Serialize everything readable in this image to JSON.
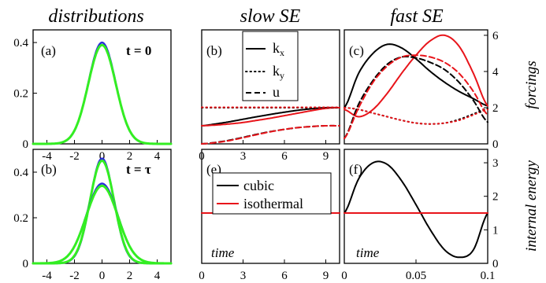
{
  "titles": {
    "distributions": "distributions",
    "slow": "slow SE",
    "fast": "fast SE"
  },
  "side_labels": {
    "forcings": "forcings",
    "energy": "internal energy"
  },
  "time_label": "time",
  "panel_labels": {
    "a": "(a)",
    "b_dist": "(b)",
    "b": "(b)",
    "c": "(c)",
    "e": "(e)",
    "f": "(f)"
  },
  "time_labels": {
    "t0": "t = 0",
    "ttau": "t = τ"
  },
  "legend_top": {
    "kx": "k",
    "kx_sub": "x",
    "ky": "k",
    "ky_sub": "y",
    "u": "u"
  },
  "legend_bottom": {
    "cubic": "cubic",
    "isothermal": "isothermal"
  },
  "colors": {
    "black": "#000000",
    "red": "#e8141a",
    "green": "#33ee22",
    "blue": "#2a2adc"
  },
  "chart_data": [
    {
      "id": "a",
      "type": "line",
      "xlim": [
        -5,
        5
      ],
      "ylim": [
        0,
        0.45
      ],
      "xticks": [
        "-4",
        "-2",
        "0",
        "2",
        "4"
      ],
      "yticks": [
        "0",
        "0.2",
        "0.4"
      ],
      "series": [
        {
          "color": "blue",
          "peak": 0.4,
          "width": 0.99
        },
        {
          "color": "green",
          "peak": 0.39,
          "width": 1.0
        }
      ]
    },
    {
      "id": "b_dist",
      "type": "line",
      "xlim": [
        -5,
        5
      ],
      "ylim": [
        0,
        0.5
      ],
      "xticks": [
        "-4",
        "-2",
        "0",
        "2",
        "4"
      ],
      "yticks": [
        "0",
        "0.2",
        "0.4"
      ],
      "series": [
        {
          "color": "blue",
          "peak": 0.46,
          "width": 0.86
        },
        {
          "color": "green",
          "peak": 0.45,
          "width": 0.88
        },
        {
          "color": "blue",
          "peak": 0.35,
          "width": 1.14
        },
        {
          "color": "green",
          "peak": 0.34,
          "width": 1.15
        }
      ]
    },
    {
      "id": "b",
      "type": "line",
      "xlim": [
        0,
        10
      ],
      "ylim": [
        0,
        6.3
      ],
      "xticks": [
        "0",
        "3",
        "6",
        "9"
      ],
      "x": [
        0,
        1,
        2,
        3,
        4,
        5,
        6,
        7,
        8,
        9,
        10
      ],
      "series": [
        {
          "name": "kx",
          "color": "black",
          "dash": "solid",
          "values": [
            1.0,
            1.1,
            1.22,
            1.36,
            1.5,
            1.63,
            1.75,
            1.86,
            1.94,
            2.0,
            2.0
          ]
        },
        {
          "name": "kx",
          "color": "red",
          "dash": "solid",
          "values": [
            1.0,
            1.04,
            1.1,
            1.18,
            1.3,
            1.42,
            1.56,
            1.7,
            1.84,
            1.96,
            2.0
          ]
        },
        {
          "name": "ky",
          "color": "black",
          "dash": "dot",
          "values": [
            2.0,
            2.0,
            2.0,
            2.0,
            2.0,
            2.0,
            2.0,
            2.0,
            2.0,
            2.0,
            2.0
          ]
        },
        {
          "name": "ky",
          "color": "red",
          "dash": "dot",
          "values": [
            2.02,
            2.02,
            2.02,
            2.02,
            2.02,
            2.02,
            2.02,
            2.02,
            2.02,
            2.02,
            2.02
          ]
        },
        {
          "name": "u",
          "color": "black",
          "dash": "dash",
          "values": [
            0.0,
            0.08,
            0.2,
            0.36,
            0.53,
            0.68,
            0.8,
            0.9,
            0.96,
            1.0,
            1.0
          ]
        },
        {
          "name": "u",
          "color": "red",
          "dash": "dash",
          "values": [
            0.0,
            0.07,
            0.18,
            0.34,
            0.51,
            0.67,
            0.8,
            0.9,
            0.96,
            1.0,
            1.0
          ]
        }
      ]
    },
    {
      "id": "c",
      "type": "line",
      "xlim": [
        0,
        0.1
      ],
      "ylim": [
        0,
        6.3
      ],
      "yticks_right": [
        "0",
        "2",
        "4",
        "6"
      ],
      "x": [
        0,
        0.01,
        0.02,
        0.03,
        0.04,
        0.05,
        0.06,
        0.07,
        0.08,
        0.09,
        0.1
      ],
      "series": [
        {
          "name": "kx",
          "color": "black",
          "dash": "solid",
          "values": [
            2.0,
            3.9,
            5.0,
            5.5,
            5.3,
            4.7,
            4.0,
            3.4,
            2.9,
            2.5,
            2.1
          ]
        },
        {
          "name": "kx",
          "color": "red",
          "dash": "solid",
          "values": [
            1.9,
            1.5,
            1.9,
            2.8,
            3.9,
            4.9,
            5.7,
            6.0,
            5.4,
            3.9,
            2.1
          ]
        },
        {
          "name": "ky",
          "color": "black",
          "dash": "dot",
          "values": [
            2.0,
            1.9,
            1.7,
            1.5,
            1.3,
            1.15,
            1.1,
            1.15,
            1.35,
            1.65,
            1.95
          ]
        },
        {
          "name": "ky",
          "color": "red",
          "dash": "dot",
          "values": [
            2.0,
            1.9,
            1.7,
            1.5,
            1.3,
            1.15,
            1.1,
            1.15,
            1.3,
            1.6,
            1.9
          ]
        },
        {
          "name": "u",
          "color": "black",
          "dash": "dash",
          "values": [
            0.3,
            2.2,
            3.5,
            4.4,
            4.8,
            4.75,
            4.5,
            4.1,
            3.4,
            2.4,
            1.2
          ]
        },
        {
          "name": "u",
          "color": "red",
          "dash": "dash",
          "values": [
            0.3,
            2.0,
            3.4,
            4.3,
            4.8,
            4.9,
            4.8,
            4.5,
            3.9,
            2.9,
            1.6
          ]
        }
      ]
    },
    {
      "id": "e",
      "type": "line",
      "xlim": [
        0,
        10
      ],
      "ylim": [
        0,
        3.4
      ],
      "xticks": [
        "0",
        "3",
        "6",
        "9"
      ],
      "x": [
        0,
        2,
        4,
        6,
        8,
        10
      ],
      "series": [
        {
          "name": "cubic",
          "color": "black",
          "dash": "solid",
          "values": [
            1.5,
            1.5,
            1.5,
            1.5,
            1.5,
            1.5
          ]
        },
        {
          "name": "isothermal",
          "color": "red",
          "dash": "solid",
          "values": [
            1.5,
            1.5,
            1.5,
            1.5,
            1.5,
            1.5
          ]
        }
      ]
    },
    {
      "id": "f",
      "type": "line",
      "xlim": [
        0,
        0.1
      ],
      "ylim": [
        0,
        3.4
      ],
      "xticks": [
        "0",
        "0.05",
        "0.1"
      ],
      "yticks_right": [
        "0",
        "1",
        "2",
        "3"
      ],
      "x": [
        0,
        0.01,
        0.02,
        0.03,
        0.04,
        0.05,
        0.06,
        0.07,
        0.08,
        0.09,
        0.1
      ],
      "series": [
        {
          "name": "cubic",
          "color": "black",
          "dash": "solid",
          "values": [
            1.5,
            2.52,
            3.0,
            2.95,
            2.46,
            1.75,
            1.0,
            0.4,
            0.18,
            0.4,
            1.5
          ]
        },
        {
          "name": "isothermal",
          "color": "red",
          "dash": "solid",
          "values": [
            1.5,
            1.5,
            1.5,
            1.5,
            1.5,
            1.5,
            1.5,
            1.5,
            1.5,
            1.5,
            1.5
          ]
        }
      ]
    }
  ]
}
